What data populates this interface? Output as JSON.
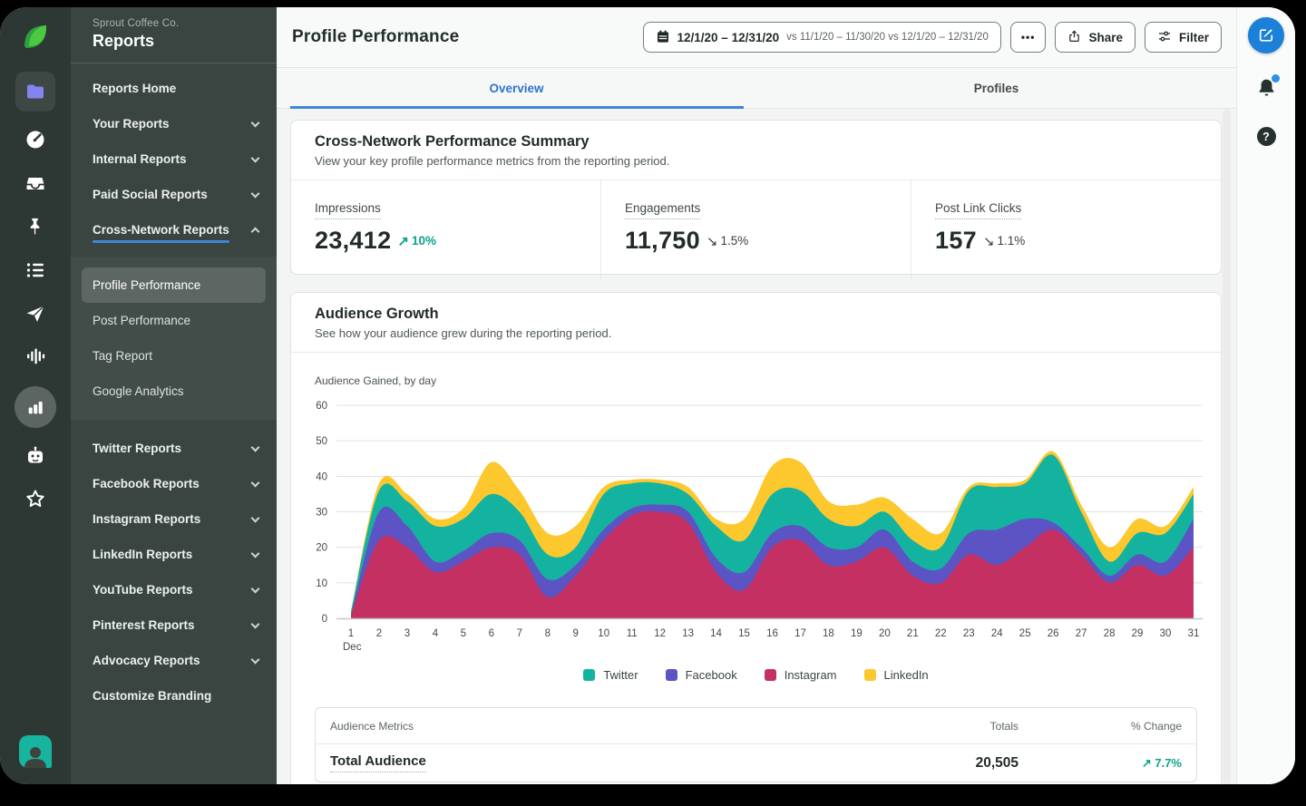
{
  "colors": {
    "twitter": "#14b3a0",
    "facebook": "#5c54c4",
    "instagram": "#c53063",
    "linkedin": "#fdc72e",
    "positive": "#0aa38c",
    "accent_blue": "#4285d6",
    "compose_blue": "#1b80d8",
    "sidebar_bg": "#3a4541",
    "rail_bg": "#2d3734",
    "folder_icon": "#8584ee",
    "sprout_green": "#4cc93f",
    "sprout_green_dark": "#2f9e44"
  },
  "rail": {
    "icons": [
      "sprout-logo",
      "folder-icon",
      "gauge-icon",
      "inbox-icon",
      "pin-icon",
      "feed-list-icon",
      "paper-plane-icon",
      "waveform-icon",
      "bar-chart-icon",
      "bot-icon",
      "star-icon",
      "user-avatar"
    ]
  },
  "sidebar": {
    "company": "Sprout Coffee Co.",
    "title": "Reports",
    "top_items": [
      {
        "label": "Reports Home",
        "chevron": "none",
        "active": false
      },
      {
        "label": "Your Reports",
        "chevron": "down",
        "active": false
      },
      {
        "label": "Internal Reports",
        "chevron": "down",
        "active": false
      },
      {
        "label": "Paid Social Reports",
        "chevron": "down",
        "active": false
      },
      {
        "label": "Cross-Network Reports",
        "chevron": "up",
        "active": true
      }
    ],
    "submenu": [
      {
        "label": "Profile Performance",
        "selected": true
      },
      {
        "label": "Post Performance",
        "selected": false
      },
      {
        "label": "Tag Report",
        "selected": false
      },
      {
        "label": "Google Analytics",
        "selected": false
      }
    ],
    "bottom_items": [
      {
        "label": "Twitter Reports",
        "chevron": "down"
      },
      {
        "label": "Facebook Reports",
        "chevron": "down"
      },
      {
        "label": "Instagram Reports",
        "chevron": "down"
      },
      {
        "label": "LinkedIn Reports",
        "chevron": "down"
      },
      {
        "label": "YouTube Reports",
        "chevron": "down"
      },
      {
        "label": "Pinterest Reports",
        "chevron": "down"
      },
      {
        "label": "Advocacy Reports",
        "chevron": "down"
      },
      {
        "label": "Customize Branding",
        "chevron": "none"
      }
    ]
  },
  "header": {
    "title": "Profile Performance",
    "date_primary": "12/1/20 – 12/31/20",
    "date_comparisons": "vs 11/1/20 – 11/30/20 vs 12/1/20 – 12/31/20",
    "more_label": "•••",
    "share_label": "Share",
    "filter_label": "Filter"
  },
  "tabs": [
    {
      "label": "Overview",
      "active": true
    },
    {
      "label": "Profiles",
      "active": false
    }
  ],
  "summary": {
    "title": "Cross-Network Performance Summary",
    "subtitle": "View your key profile performance metrics from the reporting period.",
    "metrics": [
      {
        "label": "Impressions",
        "value": "23,412",
        "change": "10%",
        "direction": "up"
      },
      {
        "label": "Engagements",
        "value": "11,750",
        "change": "1.5%",
        "direction": "down"
      },
      {
        "label": "Post Link Clicks",
        "value": "157",
        "change": "1.1%",
        "direction": "down"
      }
    ]
  },
  "audience_card": {
    "title": "Audience Growth",
    "subtitle": "See how your audience grew during the reporting period."
  },
  "chart_data": {
    "type": "area",
    "stacked": true,
    "title": "Audience Gained, by day",
    "x": [
      1,
      2,
      3,
      4,
      5,
      6,
      7,
      8,
      9,
      10,
      11,
      12,
      13,
      14,
      15,
      16,
      17,
      18,
      19,
      20,
      21,
      22,
      23,
      24,
      25,
      26,
      27,
      28,
      29,
      30,
      31
    ],
    "x_month_label": "Dec",
    "ylim": [
      0,
      60
    ],
    "yticks": [
      0,
      10,
      20,
      30,
      40,
      50,
      60
    ],
    "grid": "horizontal",
    "legend_position": "bottom-center",
    "stack_order_bottom_to_top": [
      "Instagram",
      "Facebook",
      "Twitter",
      "LinkedIn"
    ],
    "series": [
      {
        "name": "Twitter",
        "color": "#14b3a0",
        "values": [
          1,
          6,
          7,
          10,
          9,
          11,
          8,
          7,
          5,
          10,
          7,
          6,
          5,
          9,
          9,
          11,
          10,
          8,
          6,
          5,
          6,
          6,
          12,
          12,
          10,
          19,
          10,
          4,
          6,
          8,
          7
        ]
      },
      {
        "name": "Facebook",
        "color": "#5c54c4",
        "values": [
          0,
          8,
          6,
          3,
          3,
          4,
          4,
          5,
          3,
          3,
          2,
          2,
          3,
          4,
          5,
          4,
          4,
          5,
          4,
          5,
          4,
          4,
          6,
          10,
          8,
          2,
          2,
          2,
          3,
          4,
          8
        ]
      },
      {
        "name": "Instagram",
        "color": "#c53063",
        "values": [
          1,
          22,
          20,
          13,
          16,
          20,
          18,
          6,
          12,
          22,
          29,
          30,
          27,
          13,
          8,
          20,
          22,
          15,
          16,
          20,
          12,
          10,
          18,
          15,
          20,
          25,
          18,
          10,
          15,
          12,
          20
        ]
      },
      {
        "name": "LinkedIn",
        "color": "#fdc72e",
        "values": [
          0,
          2,
          2,
          2,
          3,
          9,
          6,
          6,
          6,
          2,
          1,
          1,
          2,
          2,
          6,
          8,
          8,
          5,
          6,
          4,
          6,
          4,
          1,
          1,
          1,
          1,
          2,
          4,
          4,
          2,
          2
        ]
      }
    ]
  },
  "table": {
    "headers": [
      "Audience Metrics",
      "Totals",
      "% Change"
    ],
    "rows": [
      {
        "metric": "Total Audience",
        "total": "20,505",
        "change": "7.7%",
        "direction": "up"
      }
    ]
  },
  "glyphs": {
    "arrow_up": "↗",
    "arrow_down": "↘"
  }
}
